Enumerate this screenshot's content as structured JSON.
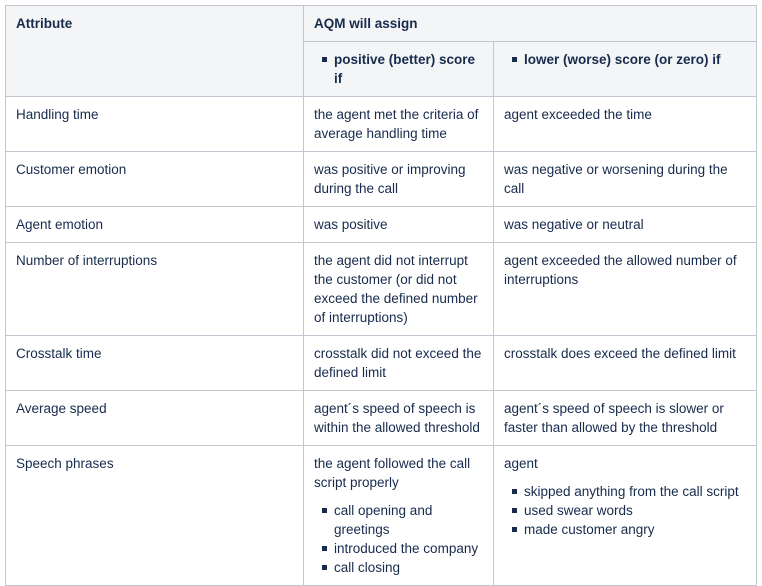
{
  "header": {
    "attribute": "Attribute",
    "aqm": "AQM will assign",
    "positive": "positive (better) score if",
    "negative": "lower (worse) score (or zero) if"
  },
  "rows": [
    {
      "attr": "Handling time",
      "pos": "the agent met the criteria of average handling time",
      "neg": "agent exceeded the time"
    },
    {
      "attr": "Customer emotion",
      "pos": "was positive or improving during the call",
      "neg": "was negative or worsening during the call"
    },
    {
      "attr": "Agent emotion",
      "pos": "was positive",
      "neg": "was negative or neutral"
    },
    {
      "attr": "Number of interruptions",
      "pos": "the agent did not interrupt the customer (or did not exceed the defined number of interruptions)",
      "neg": "agent exceeded the allowed number of interruptions"
    },
    {
      "attr": "Crosstalk time",
      "pos": "crosstalk did not exceed the defined limit",
      "neg": "crosstalk does exceed the defined limit"
    },
    {
      "attr": "Average speed",
      "pos": "agent´s speed of speech is within the allowed threshold",
      "neg": "agent´s speed of speech is slower or faster than allowed by the threshold"
    }
  ],
  "speech": {
    "attr": "Speech phrases",
    "pos_intro": "the agent followed the call script properly",
    "pos_items": [
      "call opening and greetings",
      "introduced the company",
      "call closing"
    ],
    "neg_intro": "agent",
    "neg_items": [
      "skipped anything from the call script",
      "used swear words",
      "made customer angry"
    ]
  }
}
